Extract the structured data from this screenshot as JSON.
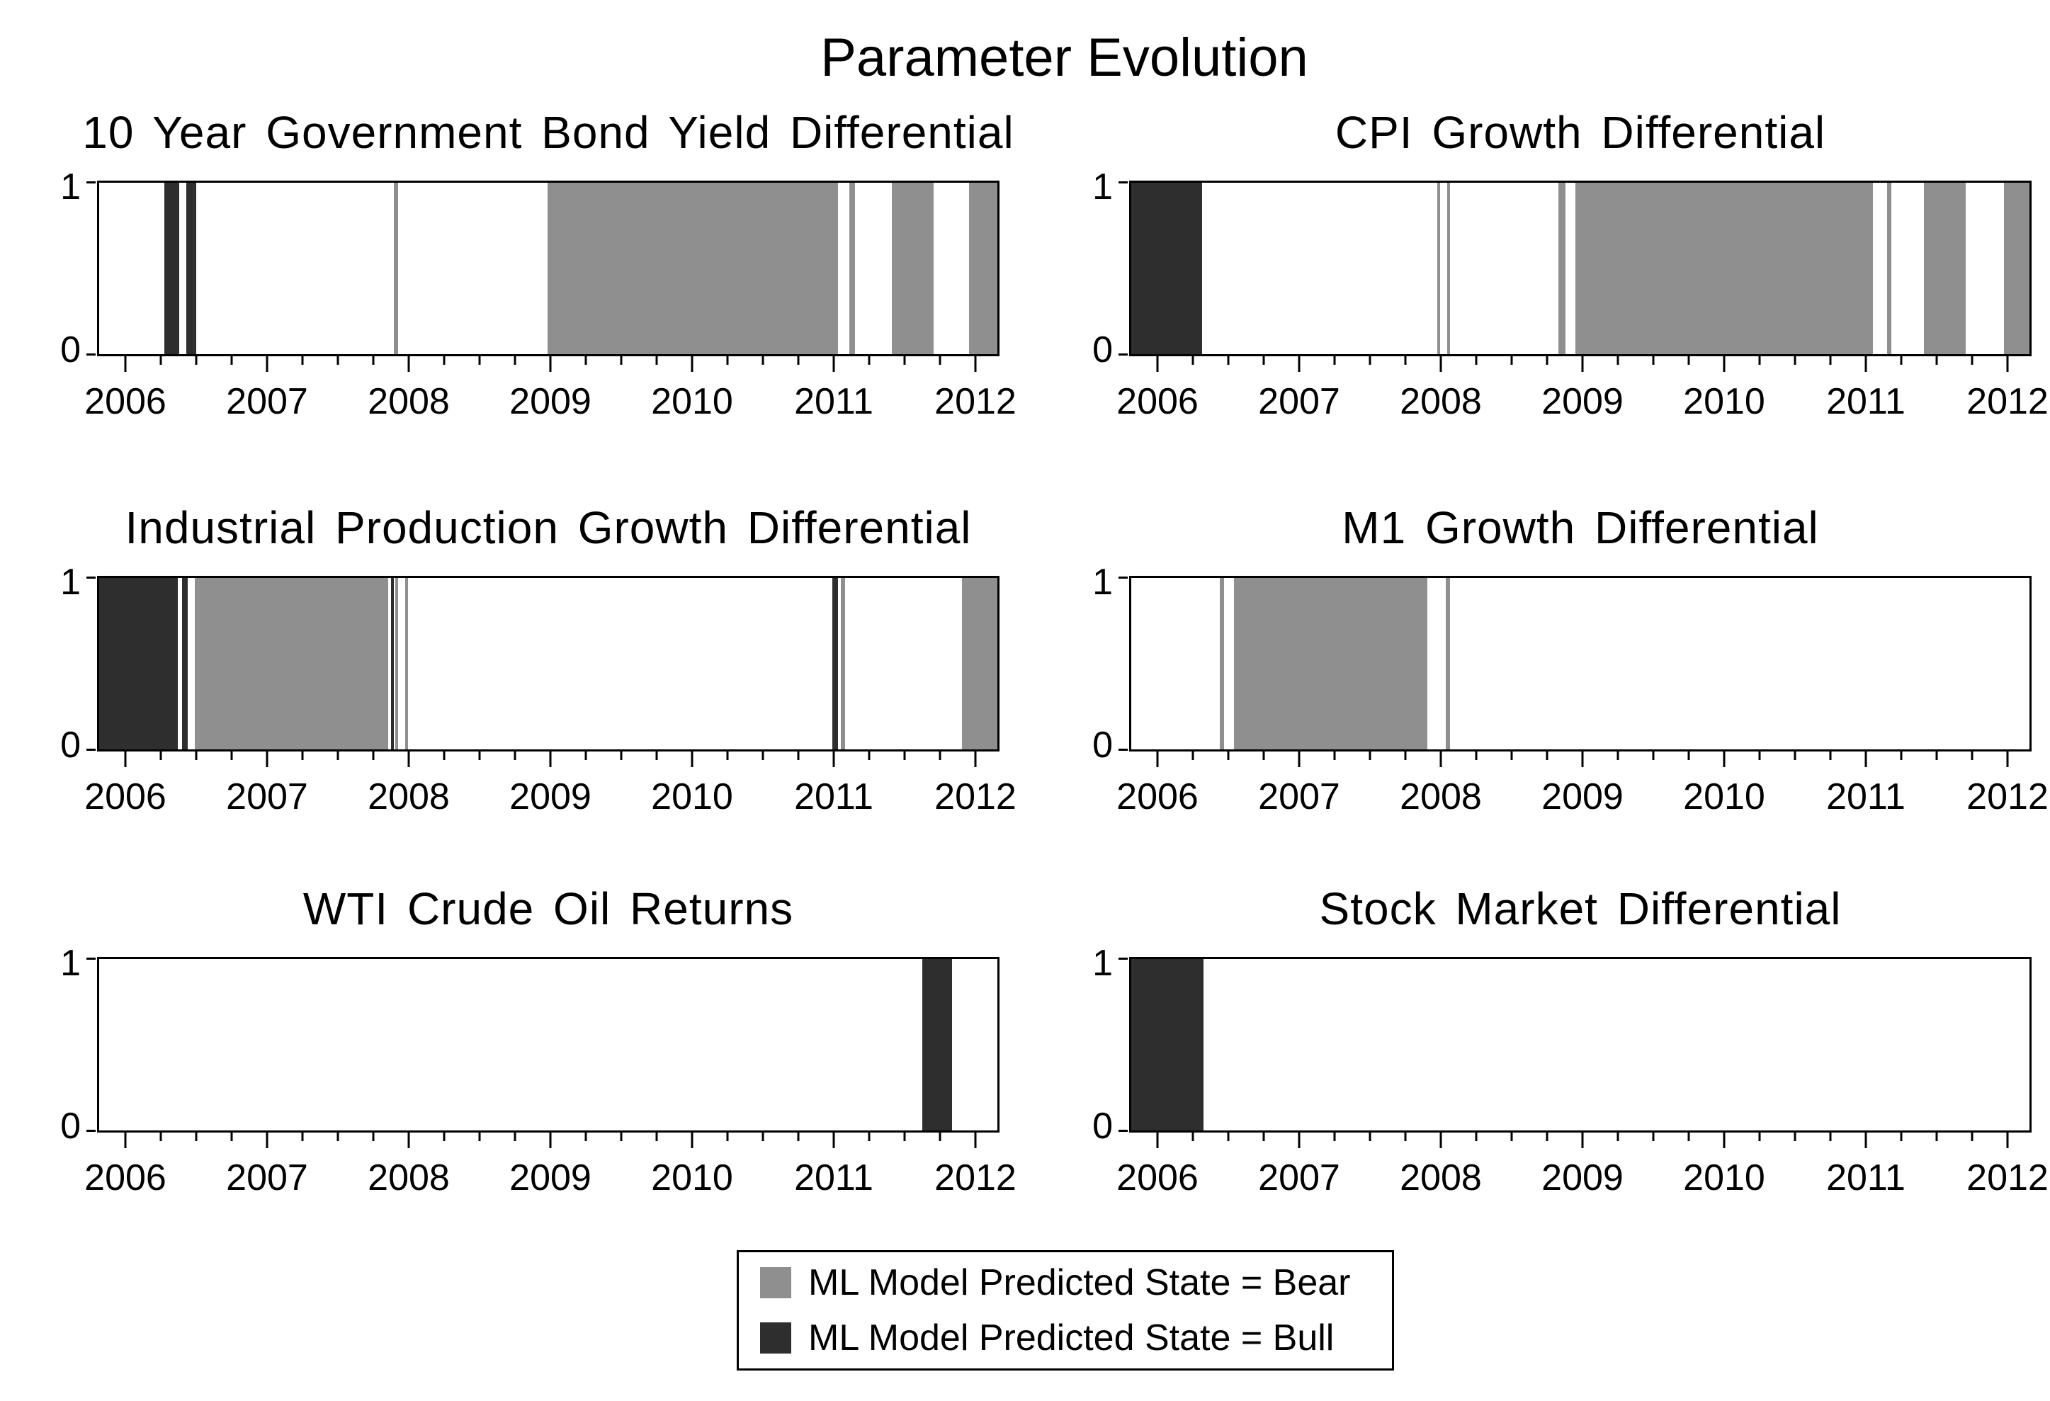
{
  "figure_title": "Parameter Evolution",
  "colors": {
    "bear": "#8f8f8f",
    "bull": "#2e2e2e",
    "axis": "#000000",
    "background": "#ffffff"
  },
  "legend": {
    "items": [
      {
        "label": "ML Model Predicted State = Bear",
        "color_key": "bear"
      },
      {
        "label": "ML Model Predicted State = Bull",
        "color_key": "bull"
      }
    ]
  },
  "y_axis": {
    "top_label": "1",
    "bottom_label": "0",
    "min": 0,
    "max": 1
  },
  "chart_data": {
    "type": "bar",
    "variant": "regime-timeline-small-multiples",
    "title": "Parameter Evolution",
    "legend_position": "bottom-center",
    "grid": false,
    "x_axis": {
      "min": 2005.8,
      "max": 2012.17,
      "year_ticks": [
        2006,
        2007,
        2008,
        2009,
        2010,
        2011,
        2012
      ],
      "minor_tick_interval": 0.25
    },
    "y_axis": {
      "min": 0,
      "max": 1,
      "ticks": [
        0,
        1
      ]
    },
    "states": {
      "bear": "ML Model Predicted State = Bear",
      "bull": "ML Model Predicted State = Bull"
    },
    "panels": [
      {
        "title": "10 Year Government Bond Yield Differential",
        "grid_pos": {
          "row": 0,
          "col": 0
        },
        "segments": [
          {
            "state": "bull",
            "start": 2006.26,
            "end": 2006.37
          },
          {
            "state": "bull",
            "start": 2006.42,
            "end": 2006.49
          },
          {
            "state": "bear",
            "start": 2007.89,
            "end": 2007.92
          },
          {
            "state": "bear",
            "start": 2008.98,
            "end": 2011.04
          },
          {
            "state": "bear",
            "start": 2011.12,
            "end": 2011.16
          },
          {
            "state": "bear",
            "start": 2011.42,
            "end": 2011.72
          },
          {
            "state": "bear",
            "start": 2011.97,
            "end": 2012.17
          }
        ]
      },
      {
        "title": "CPI Growth Differential",
        "grid_pos": {
          "row": 0,
          "col": 1
        },
        "segments": [
          {
            "state": "bull",
            "start": 2005.8,
            "end": 2006.3
          },
          {
            "state": "bear",
            "start": 2007.97,
            "end": 2007.99
          },
          {
            "state": "bear",
            "start": 2008.04,
            "end": 2008.06
          },
          {
            "state": "bear",
            "start": 2008.83,
            "end": 2008.88
          },
          {
            "state": "bear",
            "start": 2008.95,
            "end": 2011.06
          },
          {
            "state": "bear",
            "start": 2011.16,
            "end": 2011.19
          },
          {
            "state": "bear",
            "start": 2011.42,
            "end": 2011.72
          },
          {
            "state": "bear",
            "start": 2011.99,
            "end": 2012.17
          }
        ]
      },
      {
        "title": "Industrial Production Growth Differential",
        "grid_pos": {
          "row": 1,
          "col": 0
        },
        "segments": [
          {
            "state": "bull",
            "start": 2005.8,
            "end": 2006.36
          },
          {
            "state": "bull",
            "start": 2006.39,
            "end": 2006.43
          },
          {
            "state": "bear",
            "start": 2006.48,
            "end": 2007.85
          },
          {
            "state": "bull",
            "start": 2007.87,
            "end": 2007.89
          },
          {
            "state": "bear",
            "start": 2007.9,
            "end": 2007.92
          },
          {
            "state": "bear",
            "start": 2007.97,
            "end": 2007.99
          },
          {
            "state": "bull",
            "start": 2011.0,
            "end": 2011.04
          },
          {
            "state": "bear",
            "start": 2011.06,
            "end": 2011.09
          },
          {
            "state": "bear",
            "start": 2011.92,
            "end": 2012.17
          }
        ]
      },
      {
        "title": "M1 Growth Differential",
        "grid_pos": {
          "row": 1,
          "col": 1
        },
        "segments": [
          {
            "state": "bear",
            "start": 2006.43,
            "end": 2006.46
          },
          {
            "state": "bear",
            "start": 2006.53,
            "end": 2007.9
          },
          {
            "state": "bear",
            "start": 2008.03,
            "end": 2008.06
          }
        ]
      },
      {
        "title": "WTI Crude Oil Returns",
        "grid_pos": {
          "row": 2,
          "col": 0
        },
        "segments": [
          {
            "state": "bull",
            "start": 2011.64,
            "end": 2011.85
          }
        ]
      },
      {
        "title": "Stock Market Differential",
        "grid_pos": {
          "row": 2,
          "col": 1
        },
        "segments": [
          {
            "state": "bull",
            "start": 2005.8,
            "end": 2006.31
          }
        ]
      }
    ]
  }
}
